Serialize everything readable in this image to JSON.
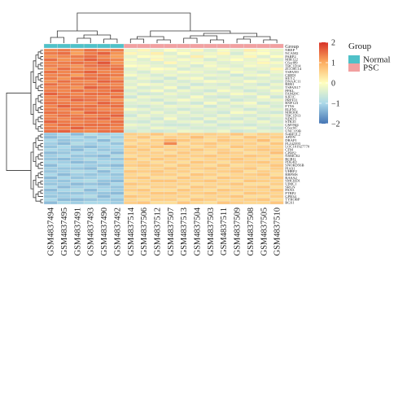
{
  "chart_data": {
    "type": "heatmap",
    "title": "",
    "xlabel": "",
    "ylabel": "",
    "columns": [
      {
        "label": "GSM4837494",
        "group": "Normal"
      },
      {
        "label": "GSM4837495",
        "group": "Normal"
      },
      {
        "label": "GSM4837491",
        "group": "Normal"
      },
      {
        "label": "GSM4837493",
        "group": "Normal"
      },
      {
        "label": "GSM4837490",
        "group": "Normal"
      },
      {
        "label": "GSM4837492",
        "group": "Normal"
      },
      {
        "label": "GSM4837514",
        "group": "PSC"
      },
      {
        "label": "GSM4837506",
        "group": "PSC"
      },
      {
        "label": "GSM4837512",
        "group": "PSC"
      },
      {
        "label": "GSM4837507",
        "group": "PSC"
      },
      {
        "label": "GSM4837513",
        "group": "PSC"
      },
      {
        "label": "GSM4837504",
        "group": "PSC"
      },
      {
        "label": "GSM4837503",
        "group": "PSC"
      },
      {
        "label": "GSM4837511",
        "group": "PSC"
      },
      {
        "label": "GSM4837509",
        "group": "PSC"
      },
      {
        "label": "GSM4837508",
        "group": "PSC"
      },
      {
        "label": "GSM4837505",
        "group": "PSC"
      },
      {
        "label": "GSM4837510",
        "group": "PSC"
      }
    ],
    "rows": [
      "NREP",
      "NCAM2",
      "PARP2",
      "MIR122",
      "C6orf89",
      "TBC1D14",
      "ZCCHC14",
      "TSPAN9",
      "CHID1",
      "HEY2",
      "DNAJC11",
      "RER1",
      "TSPAN17",
      "PFKL",
      "FAM20C",
      "KIF1C",
      "PRPF31",
      "RNF123",
      "FTX6",
      "ELFN1",
      "MIR30E",
      "TBC1D13",
      "NDST1",
      "STK35",
      "CMTM4",
      "C6orf47",
      "UNC119B",
      "N4BP2L2",
      "AFDN",
      "DRAP1",
      "FLJ42393",
      "LOC101927770",
      "CFM",
      "GPR82",
      "NSMCE2",
      "RCBI1",
      "PDE4D",
      "SNORD56B",
      "PIAS1",
      "UHRF2",
      "RBPMS",
      "RASA2",
      "SMCHD1",
      "UIMC1",
      "SRGN",
      "PAN3",
      "PTBP2",
      "GPR34",
      "TYROBP",
      "RGS1"
    ],
    "values": [
      [
        1.3,
        1.4,
        1.2,
        1.5,
        1.3,
        1.4,
        -0.2,
        0.1,
        -0.3,
        0.0,
        -0.2,
        0.1,
        -0.4,
        -0.1,
        -0.3,
        0.2,
        -0.1,
        -0.2
      ],
      [
        1.4,
        1.5,
        1.1,
        1.4,
        1.6,
        1.2,
        0.1,
        -0.2,
        0.2,
        -0.4,
        0.0,
        -0.3,
        -0.2,
        0.1,
        -0.5,
        -0.1,
        0.0,
        -0.3
      ],
      [
        1.2,
        1.3,
        1.4,
        1.5,
        1.3,
        1.1,
        -0.3,
        0.0,
        -0.1,
        -0.2,
        -0.4,
        0.2,
        -0.1,
        -0.3,
        -0.2,
        0.1,
        -0.4,
        0.0
      ],
      [
        1.5,
        1.2,
        1.3,
        1.6,
        1.4,
        1.3,
        -0.1,
        -0.4,
        0.1,
        -0.3,
        -0.1,
        -0.2,
        -0.5,
        -0.2,
        0.0,
        -0.3,
        -0.1,
        -0.4
      ],
      [
        1.3,
        1.4,
        1.5,
        1.4,
        1.7,
        1.2,
        -0.2,
        -0.3,
        -0.4,
        0.1,
        -0.3,
        -0.1,
        -0.2,
        -0.4,
        -0.3,
        -0.2,
        0.1,
        -0.1
      ],
      [
        1.4,
        1.3,
        1.2,
        1.5,
        1.5,
        1.4,
        0.0,
        -0.1,
        -0.3,
        -0.4,
        -0.2,
        -0.5,
        -0.1,
        -0.3,
        -0.4,
        -0.1,
        -0.2,
        -0.3
      ],
      [
        1.2,
        1.5,
        1.3,
        1.3,
        1.4,
        1.5,
        -0.4,
        -0.2,
        0.0,
        -0.1,
        -0.5,
        -0.3,
        -0.3,
        -0.1,
        -0.2,
        -0.4,
        -0.3,
        0.1
      ],
      [
        1.5,
        1.3,
        1.4,
        1.6,
        1.3,
        1.3,
        -0.3,
        -0.5,
        -0.2,
        -0.3,
        -0.1,
        -0.2,
        -0.4,
        -0.5,
        -0.1,
        -0.3,
        -0.5,
        -0.2
      ],
      [
        1.3,
        1.4,
        1.1,
        1.4,
        1.5,
        1.4,
        -0.1,
        -0.3,
        -0.5,
        -0.2,
        -0.4,
        -0.4,
        -0.2,
        -0.3,
        -0.6,
        -0.2,
        -0.1,
        -0.4
      ],
      [
        1.4,
        1.2,
        1.5,
        1.5,
        1.4,
        1.2,
        -0.5,
        -0.2,
        -0.3,
        -0.6,
        -0.2,
        -0.1,
        -0.5,
        -0.4,
        -0.3,
        -0.5,
        -0.4,
        -0.3
      ],
      [
        1.2,
        1.5,
        1.3,
        1.3,
        1.6,
        1.5,
        -0.3,
        -0.4,
        -0.6,
        -0.3,
        -0.5,
        -0.3,
        -0.1,
        -0.2,
        -0.4,
        -0.1,
        -0.3,
        -0.5
      ],
      [
        1.5,
        1.3,
        1.4,
        1.4,
        1.3,
        1.3,
        -0.4,
        -0.1,
        -0.2,
        -0.4,
        -0.3,
        -0.6,
        -0.4,
        -0.5,
        -0.2,
        -0.4,
        -0.6,
        -0.2
      ],
      [
        1.3,
        1.4,
        1.2,
        1.6,
        1.5,
        1.4,
        -0.2,
        -0.5,
        -0.4,
        -0.1,
        -0.6,
        -0.2,
        -0.3,
        -0.3,
        -0.5,
        -0.3,
        -0.2,
        -0.4
      ],
      [
        1.4,
        1.3,
        1.5,
        1.3,
        1.4,
        1.6,
        -0.5,
        -0.3,
        -0.1,
        -0.5,
        -0.2,
        -0.4,
        -0.6,
        -0.1,
        -0.3,
        -0.6,
        -0.4,
        -0.1
      ],
      [
        1.6,
        1.4,
        1.3,
        1.5,
        1.5,
        1.3,
        -0.3,
        -0.6,
        -0.5,
        -0.2,
        -0.4,
        -0.5,
        -0.2,
        -0.4,
        -0.1,
        -0.2,
        -0.5,
        -0.3
      ],
      [
        1.3,
        1.5,
        1.4,
        1.4,
        1.3,
        1.5,
        -0.6,
        -0.2,
        -0.3,
        -0.4,
        -0.5,
        -0.1,
        -0.5,
        -0.6,
        -0.4,
        -0.5,
        -0.1,
        -0.6
      ],
      [
        1.4,
        1.3,
        1.6,
        1.5,
        1.4,
        1.2,
        -0.2,
        -0.4,
        -0.6,
        -0.3,
        -0.1,
        -0.3,
        -0.4,
        -0.2,
        -0.6,
        -0.4,
        -0.3,
        -0.2
      ],
      [
        1.5,
        1.4,
        1.3,
        1.3,
        1.6,
        1.4,
        -0.4,
        -0.3,
        -0.2,
        -0.6,
        -0.4,
        -0.6,
        -0.1,
        -0.5,
        -0.2,
        -0.1,
        -0.6,
        -0.4
      ],
      [
        1.3,
        1.6,
        1.4,
        1.5,
        1.4,
        1.5,
        -0.5,
        -0.6,
        -0.4,
        -0.2,
        -0.3,
        -0.2,
        -0.6,
        -0.3,
        -0.5,
        -0.3,
        -0.2,
        -0.5
      ],
      [
        1.4,
        1.3,
        1.5,
        1.4,
        1.3,
        1.3,
        -0.1,
        -0.3,
        -0.5,
        -0.4,
        -0.6,
        -0.4,
        -0.3,
        -0.4,
        -0.3,
        -0.6,
        -0.4,
        -0.3
      ],
      [
        1.5,
        1.4,
        1.2,
        1.6,
        1.5,
        1.4,
        -0.4,
        -0.5,
        -0.2,
        -0.5,
        -0.2,
        -0.5,
        -0.4,
        -0.6,
        -0.1,
        -0.2,
        -0.5,
        -0.6
      ],
      [
        1.3,
        1.5,
        1.4,
        1.3,
        1.4,
        1.6,
        -0.6,
        -0.2,
        -0.4,
        -0.3,
        -0.4,
        -0.3,
        -0.5,
        -0.2,
        -0.4,
        -0.5,
        -0.3,
        -0.2
      ],
      [
        1.4,
        1.3,
        1.5,
        1.5,
        1.6,
        1.3,
        -0.3,
        -0.4,
        -0.6,
        -0.1,
        -0.5,
        -0.6,
        -0.2,
        -0.5,
        -0.6,
        -0.3,
        -0.6,
        -0.4
      ],
      [
        1.6,
        1.4,
        1.3,
        1.4,
        1.3,
        1.5,
        -0.5,
        -0.6,
        -0.3,
        -0.5,
        -0.3,
        -0.2,
        -0.6,
        -0.3,
        -0.2,
        -0.4,
        -0.2,
        -0.5
      ],
      [
        1.3,
        1.5,
        1.4,
        1.5,
        1.5,
        1.4,
        -0.2,
        -0.3,
        -0.5,
        -0.6,
        -0.6,
        -0.4,
        -0.3,
        -0.6,
        -0.5,
        -0.6,
        -0.4,
        -0.3
      ],
      [
        1.4,
        1.3,
        1.6,
        1.4,
        1.4,
        1.3,
        -0.4,
        -0.5,
        -0.2,
        -0.3,
        -0.4,
        -0.5,
        -0.5,
        -0.4,
        -0.3,
        -0.2,
        -0.5,
        -0.6
      ],
      [
        1.5,
        1.6,
        1.3,
        1.3,
        1.5,
        1.5,
        -0.6,
        -0.4,
        -0.6,
        -0.5,
        -0.2,
        -0.3,
        -0.4,
        -0.2,
        -0.6,
        -0.5,
        -0.3,
        -0.4
      ],
      [
        -1.2,
        -1.0,
        -1.3,
        -0.9,
        -1.1,
        -1.0,
        0.6,
        0.5,
        0.7,
        0.4,
        0.6,
        0.5,
        0.6,
        0.5,
        0.7,
        0.4,
        0.6,
        0.5
      ],
      [
        -1.3,
        -1.1,
        -1.0,
        -1.2,
        -0.9,
        -1.1,
        0.5,
        0.7,
        0.4,
        0.6,
        0.5,
        0.8,
        0.5,
        0.6,
        0.4,
        0.7,
        0.5,
        0.6
      ],
      [
        -1.0,
        -1.2,
        -1.1,
        -1.0,
        -1.3,
        -0.9,
        0.6,
        0.4,
        0.6,
        0.9,
        0.7,
        0.5,
        0.4,
        0.7,
        0.6,
        0.5,
        0.8,
        0.4
      ],
      [
        -1.1,
        -1.3,
        -0.9,
        -1.1,
        -1.0,
        -1.2,
        0.4,
        0.6,
        0.5,
        1.3,
        0.4,
        0.6,
        0.7,
        0.5,
        0.5,
        0.6,
        0.4,
        0.7
      ],
      [
        -1.2,
        -1.0,
        -1.2,
        -1.3,
        -1.1,
        -1.0,
        0.7,
        0.5,
        0.7,
        0.5,
        0.6,
        0.4,
        0.6,
        0.4,
        0.7,
        0.5,
        0.6,
        0.5
      ],
      [
        -1.0,
        -1.1,
        -1.3,
        -1.0,
        -1.2,
        -1.1,
        0.5,
        0.7,
        0.4,
        0.6,
        0.5,
        0.7,
        0.5,
        0.6,
        0.4,
        0.6,
        0.7,
        0.6
      ],
      [
        -1.3,
        -1.2,
        -1.0,
        -1.1,
        -1.0,
        -1.3,
        0.6,
        0.5,
        0.6,
        0.4,
        0.7,
        0.5,
        0.4,
        0.7,
        0.6,
        0.4,
        0.5,
        0.8
      ],
      [
        -1.1,
        -1.0,
        -1.2,
        -1.2,
        -1.3,
        -0.9,
        0.4,
        0.6,
        0.5,
        0.7,
        0.5,
        0.6,
        0.7,
        0.5,
        0.5,
        0.7,
        0.6,
        0.4
      ],
      [
        -1.2,
        -1.3,
        -1.1,
        -0.9,
        -1.1,
        -1.2,
        0.7,
        0.4,
        0.7,
        0.5,
        0.6,
        0.4,
        0.5,
        0.6,
        0.7,
        0.5,
        0.4,
        0.6
      ],
      [
        -1.0,
        -1.1,
        -1.3,
        -1.2,
        -1.0,
        -1.0,
        0.5,
        0.6,
        0.4,
        0.6,
        0.4,
        0.7,
        0.6,
        0.4,
        0.6,
        0.6,
        0.7,
        0.5
      ],
      [
        -1.3,
        -1.0,
        -1.0,
        -1.1,
        -1.2,
        -1.3,
        0.6,
        0.7,
        0.6,
        0.4,
        0.7,
        0.5,
        0.4,
        0.7,
        0.4,
        0.5,
        0.5,
        0.7
      ],
      [
        -1.1,
        -1.2,
        -1.2,
        -1.3,
        -0.9,
        -1.1,
        0.4,
        0.5,
        0.5,
        0.7,
        0.5,
        0.6,
        0.7,
        0.5,
        0.6,
        0.7,
        0.4,
        0.6
      ],
      [
        -1.2,
        -1.1,
        -0.9,
        -1.0,
        -1.3,
        -1.0,
        0.7,
        0.6,
        0.7,
        0.5,
        0.6,
        0.4,
        0.5,
        0.6,
        0.7,
        0.4,
        0.6,
        0.5
      ],
      [
        -1.0,
        -1.3,
        -1.1,
        -1.2,
        -1.1,
        -1.2,
        0.5,
        0.4,
        0.6,
        0.6,
        0.4,
        0.7,
        0.6,
        0.4,
        0.5,
        0.6,
        0.7,
        0.4
      ],
      [
        -1.3,
        -1.0,
        -1.2,
        -1.1,
        -1.0,
        -1.1,
        0.6,
        0.7,
        0.4,
        0.4,
        0.7,
        0.5,
        0.4,
        0.7,
        0.6,
        0.5,
        0.5,
        0.7
      ],
      [
        -1.1,
        -1.2,
        -1.0,
        -0.9,
        -1.2,
        -1.3,
        0.4,
        0.5,
        0.7,
        0.7,
        0.5,
        0.6,
        0.7,
        0.5,
        0.4,
        0.7,
        0.6,
        0.5
      ],
      [
        -1.2,
        -1.1,
        -1.3,
        -1.2,
        -1.3,
        -1.0,
        0.7,
        0.6,
        0.5,
        0.5,
        0.6,
        0.4,
        0.5,
        0.6,
        0.7,
        0.4,
        0.4,
        0.6
      ],
      [
        -1.0,
        -1.3,
        -1.1,
        -1.0,
        -1.1,
        -1.2,
        0.5,
        0.4,
        0.6,
        0.6,
        0.4,
        0.7,
        0.6,
        0.4,
        0.5,
        0.6,
        0.7,
        0.4
      ],
      [
        -1.3,
        -1.0,
        -0.9,
        -1.3,
        -1.0,
        -1.1,
        0.6,
        0.7,
        0.4,
        0.4,
        0.7,
        0.5,
        0.4,
        0.7,
        0.6,
        0.5,
        0.5,
        0.7
      ],
      [
        -1.1,
        -1.2,
        -1.2,
        -1.1,
        -1.2,
        -1.3,
        0.4,
        0.5,
        0.7,
        0.7,
        0.5,
        0.6,
        0.7,
        0.5,
        0.4,
        0.7,
        0.6,
        0.5
      ],
      [
        -1.2,
        -1.1,
        -1.0,
        -0.9,
        -1.3,
        -1.0,
        0.7,
        0.6,
        0.5,
        0.5,
        0.6,
        0.4,
        0.5,
        0.6,
        0.7,
        0.4,
        0.4,
        0.6
      ],
      [
        -1.0,
        -1.3,
        -1.3,
        -1.2,
        -1.1,
        -1.2,
        0.5,
        0.4,
        0.6,
        0.6,
        0.4,
        0.7,
        0.6,
        0.4,
        0.5,
        0.6,
        0.7,
        0.4
      ],
      [
        -1.3,
        -1.0,
        -1.1,
        -1.0,
        -1.0,
        -1.1,
        0.6,
        0.7,
        0.4,
        0.4,
        0.7,
        0.5,
        0.4,
        0.7,
        0.6,
        0.5,
        0.5,
        0.7
      ]
    ],
    "color_scale": {
      "min": -2,
      "max": 2,
      "ticks": [
        -2,
        -1,
        0,
        1,
        2
      ],
      "tick_labels": [
        "−2",
        "−1",
        "0",
        "1",
        "2"
      ],
      "colors": [
        "#4575b4",
        "#ffffbf",
        "#d73027"
      ]
    },
    "annotation": {
      "row_label": "Group",
      "legend_title": "Group",
      "groups": [
        {
          "name": "Normal",
          "color": "#4fc1c8"
        },
        {
          "name": "PSC",
          "color": "#f2a0a0"
        }
      ]
    },
    "dendrograms": true,
    "grid": true
  }
}
